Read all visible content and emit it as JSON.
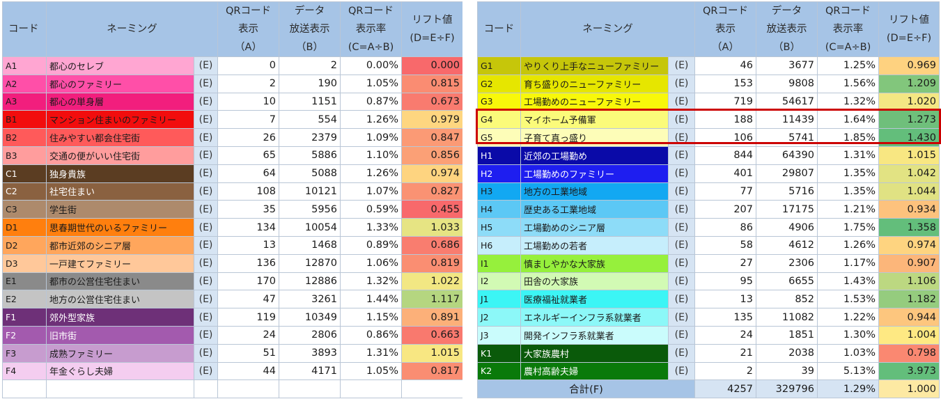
{
  "headers": {
    "code": "コード",
    "naming": "ネーミング",
    "qr": [
      "QRコード",
      "表示",
      "（A）"
    ],
    "data": [
      "データ",
      "放送表示",
      "（B）"
    ],
    "rate": [
      "QRコード",
      "表示率",
      "(C=A÷B)"
    ],
    "lift": [
      "リフト値",
      "(D=E÷F)"
    ]
  },
  "e_label": "(E)",
  "total_label": "合計(F)",
  "totals": {
    "qr": "4257",
    "data": "329796",
    "rate": "1.29%",
    "lift": "1.000",
    "lift_color": "#fde9a3"
  },
  "left_rows": [
    {
      "code": "A1",
      "name": "都心のセレブ",
      "qr": "0",
      "data": "2",
      "rate": "0.00%",
      "lift": "0.000",
      "bg": "#ffa6d2",
      "fg": "#1a1a1a",
      "lift_bg": "#f8696b"
    },
    {
      "code": "A2",
      "name": "都心のファミリー",
      "qr": "2",
      "data": "190",
      "rate": "1.05%",
      "lift": "0.815",
      "bg": "#ff4fa8",
      "fg": "#1a1a1a",
      "lift_bg": "#fa8c72"
    },
    {
      "code": "A3",
      "name": "都心の単身層",
      "qr": "10",
      "data": "1151",
      "rate": "0.87%",
      "lift": "0.673",
      "bg": "#f21e7d",
      "fg": "#1a1a1a",
      "lift_bg": "#f97b6f"
    },
    {
      "code": "B1",
      "name": "マンション住まいのファミリー",
      "qr": "7",
      "data": "554",
      "rate": "1.26%",
      "lift": "0.979",
      "bg": "#f20d0d",
      "fg": "#1a1a1a",
      "lift_bg": "#fed680"
    },
    {
      "code": "B2",
      "name": "住みやすい都会住宅街",
      "qr": "26",
      "data": "2379",
      "rate": "1.09%",
      "lift": "0.847",
      "bg": "#ff5a5a",
      "fg": "#1a1a1a",
      "lift_bg": "#fb9a75"
    },
    {
      "code": "B3",
      "name": "交通の便がいい住宅街",
      "qr": "65",
      "data": "5886",
      "rate": "1.10%",
      "lift": "0.856",
      "bg": "#ff9d9d",
      "fg": "#1a1a1a",
      "lift_bg": "#fba076"
    },
    {
      "code": "C1",
      "name": "独身貴族",
      "qr": "64",
      "data": "5088",
      "rate": "1.26%",
      "lift": "0.974",
      "bg": "#5b3d22",
      "fg": "#ffffff",
      "lift_bg": "#fed480"
    },
    {
      "code": "C2",
      "name": "社宅住まい",
      "qr": "108",
      "data": "10121",
      "rate": "1.07%",
      "lift": "0.827",
      "bg": "#8a6140",
      "fg": "#ffffff",
      "lift_bg": "#fa9273"
    },
    {
      "code": "C3",
      "name": "学生街",
      "qr": "35",
      "data": "5956",
      "rate": "0.59%",
      "lift": "0.455",
      "bg": "#ad8a6c",
      "fg": "#1a1a1a",
      "lift_bg": "#f8696b"
    },
    {
      "code": "D1",
      "name": "思春期世代のいるファミリー",
      "qr": "134",
      "data": "10054",
      "rate": "1.33%",
      "lift": "1.033",
      "bg": "#ff7f0e",
      "fg": "#1a1a1a",
      "lift_bg": "#e6e483"
    },
    {
      "code": "D2",
      "name": "都市近郊のシニア層",
      "qr": "13",
      "data": "1468",
      "rate": "0.89%",
      "lift": "0.686",
      "bg": "#ffa65c",
      "fg": "#1a1a1a",
      "lift_bg": "#f97d6f"
    },
    {
      "code": "D3",
      "name": "一戸建てファミリー",
      "qr": "136",
      "data": "12870",
      "rate": "1.06%",
      "lift": "0.819",
      "bg": "#ffc89a",
      "fg": "#1a1a1a",
      "lift_bg": "#fa8e72"
    },
    {
      "code": "E1",
      "name": "都市の公営住宅住まい",
      "qr": "170",
      "data": "12886",
      "rate": "1.32%",
      "lift": "1.022",
      "bg": "#8a8a8a",
      "fg": "#1a1a1a",
      "lift_bg": "#f2e783"
    },
    {
      "code": "E2",
      "name": "地方の公営住宅住まい",
      "qr": "47",
      "data": "3261",
      "rate": "1.44%",
      "lift": "1.117",
      "bg": "#c4c4c4",
      "fg": "#1a1a1a",
      "lift_bg": "#b5d680"
    },
    {
      "code": "F1",
      "name": "郊外型家族",
      "qr": "119",
      "data": "10349",
      "rate": "1.15%",
      "lift": "0.891",
      "bg": "#6e3078",
      "fg": "#ffffff",
      "lift_bg": "#fcb079"
    },
    {
      "code": "F2",
      "name": "旧市街",
      "qr": "24",
      "data": "2806",
      "rate": "0.86%",
      "lift": "0.663",
      "bg": "#a35aae",
      "fg": "#ffffff",
      "lift_bg": "#f9796e"
    },
    {
      "code": "F3",
      "name": "成熟ファミリー",
      "qr": "51",
      "data": "3893",
      "rate": "1.31%",
      "lift": "1.015",
      "bg": "#c79ccf",
      "fg": "#1a1a1a",
      "lift_bg": "#f8e782"
    },
    {
      "code": "F4",
      "name": "年金ぐらし夫婦",
      "qr": "44",
      "data": "4171",
      "rate": "1.05%",
      "lift": "0.817",
      "bg": "#f4cdf0",
      "fg": "#1a1a1a",
      "lift_bg": "#fa8d72"
    }
  ],
  "right_rows": [
    {
      "code": "G1",
      "name": "やりくり上手なニューファミリー",
      "qr": "46",
      "data": "3677",
      "rate": "1.25%",
      "lift": "0.969",
      "bg": "#c6c60a",
      "fg": "#1a1a1a",
      "lift_bg": "#fed280"
    },
    {
      "code": "G2",
      "name": "育ち盛りのニューファミリー",
      "qr": "153",
      "data": "9808",
      "rate": "1.56%",
      "lift": "1.209",
      "bg": "#e6e600",
      "fg": "#1a1a1a",
      "lift_bg": "#82c67c"
    },
    {
      "code": "G3",
      "name": "工場勤めのニューファミリー",
      "qr": "719",
      "data": "54617",
      "rate": "1.32%",
      "lift": "1.020",
      "bg": "#f8f80a",
      "fg": "#1a1a1a",
      "lift_bg": "#f4e783"
    },
    {
      "code": "G4",
      "name": "マイホーム予備軍",
      "qr": "188",
      "data": "11439",
      "rate": "1.64%",
      "lift": "1.273",
      "bg": "#fbfb7a",
      "fg": "#1a1a1a",
      "lift_bg": "#6fbf7b"
    },
    {
      "code": "G5",
      "name": "子育て真っ盛り",
      "qr": "106",
      "data": "5741",
      "rate": "1.85%",
      "lift": "1.430",
      "bg": "#fdfdb8",
      "fg": "#1a1a1a",
      "lift_bg": "#63be7b"
    },
    {
      "code": "H1",
      "name": "近郊の工場勤め",
      "qr": "844",
      "data": "64390",
      "rate": "1.31%",
      "lift": "1.015",
      "bg": "#0a0aa8",
      "fg": "#ffffff",
      "lift_bg": "#f8e782"
    },
    {
      "code": "H2",
      "name": "工場勤めのファミリー",
      "qr": "401",
      "data": "29807",
      "rate": "1.35%",
      "lift": "1.042",
      "bg": "#1e1ef0",
      "fg": "#ffffff",
      "lift_bg": "#e2e383"
    },
    {
      "code": "H3",
      "name": "地方の工業地域",
      "qr": "77",
      "data": "5716",
      "rate": "1.35%",
      "lift": "1.044",
      "bg": "#12a8f2",
      "fg": "#1a1a1a",
      "lift_bg": "#e0e283"
    },
    {
      "code": "H4",
      "name": "歴史ある工業地域",
      "qr": "207",
      "data": "17175",
      "rate": "1.21%",
      "lift": "0.934",
      "bg": "#5cc8f5",
      "fg": "#1a1a1a",
      "lift_bg": "#fdc27d"
    },
    {
      "code": "H5",
      "name": "工場勤めのシニア層",
      "qr": "86",
      "data": "4906",
      "rate": "1.75%",
      "lift": "1.358",
      "bg": "#8ddcf8",
      "fg": "#1a1a1a",
      "lift_bg": "#63be7b"
    },
    {
      "code": "H6",
      "name": "工場勤めの若者",
      "qr": "58",
      "data": "4612",
      "rate": "1.26%",
      "lift": "0.974",
      "bg": "#c6eefc",
      "fg": "#1a1a1a",
      "lift_bg": "#fed480"
    },
    {
      "code": "I1",
      "name": "慎ましやかな大家族",
      "qr": "27",
      "data": "2306",
      "rate": "1.17%",
      "lift": "0.907",
      "bg": "#96f03c",
      "fg": "#1a1a1a",
      "lift_bg": "#fcb67a"
    },
    {
      "code": "I2",
      "name": "田舎の大家族",
      "qr": "95",
      "data": "6655",
      "rate": "1.43%",
      "lift": "1.106",
      "bg": "#d2fab4",
      "fg": "#1a1a1a",
      "lift_bg": "#bcd881"
    },
    {
      "code": "J1",
      "name": "医療福祉就業者",
      "qr": "13",
      "data": "852",
      "rate": "1.53%",
      "lift": "1.182",
      "bg": "#3cf5f5",
      "fg": "#1a1a1a",
      "lift_bg": "#95cc7e"
    },
    {
      "code": "J2",
      "name": "エネルギーインフラ系就業者",
      "qr": "135",
      "data": "11082",
      "rate": "1.22%",
      "lift": "0.944",
      "bg": "#8cf8f8",
      "fg": "#1a1a1a",
      "lift_bg": "#fdc67e"
    },
    {
      "code": "J3",
      "name": "開発インフラ系就業者",
      "qr": "24",
      "data": "1851",
      "rate": "1.30%",
      "lift": "1.004",
      "bg": "#cafcfc",
      "fg": "#1a1a1a",
      "lift_bg": "#fee983"
    },
    {
      "code": "K1",
      "name": "大家族農村",
      "qr": "21",
      "data": "2038",
      "rate": "1.03%",
      "lift": "0.798",
      "bg": "#0a5a0a",
      "fg": "#ffffff",
      "lift_bg": "#fa8871"
    },
    {
      "code": "K2",
      "name": "農村高齢夫婦",
      "qr": "2",
      "data": "39",
      "rate": "5.13%",
      "lift": "3.973",
      "bg": "#0a7a0a",
      "fg": "#ffffff",
      "lift_bg": "#63be7b"
    }
  ]
}
